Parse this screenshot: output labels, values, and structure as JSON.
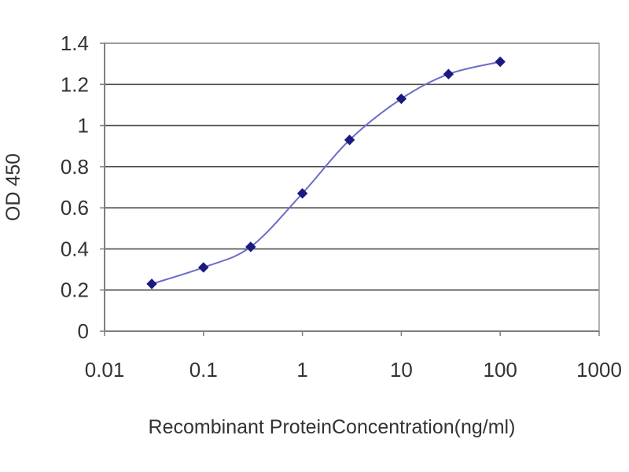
{
  "chart_data": {
    "type": "line",
    "title": "",
    "xlabel": "Recombinant ProteinConcentration(ng/ml)",
    "ylabel": "OD 450",
    "x_scale": "log",
    "xlim": [
      0.01,
      1000
    ],
    "ylim": [
      0,
      1.4
    ],
    "grid": "horizontal",
    "legend": "none",
    "x_ticks": [
      {
        "value": 0.01,
        "label": "0.01"
      },
      {
        "value": 0.1,
        "label": "0.1"
      },
      {
        "value": 1,
        "label": "1"
      },
      {
        "value": 10,
        "label": "10"
      },
      {
        "value": 100,
        "label": "100"
      },
      {
        "value": 1000,
        "label": "1000"
      }
    ],
    "y_ticks": [
      {
        "value": 0,
        "label": "0"
      },
      {
        "value": 0.2,
        "label": "0.2"
      },
      {
        "value": 0.4,
        "label": "0.4"
      },
      {
        "value": 0.6,
        "label": "0.6"
      },
      {
        "value": 0.8,
        "label": "0.8"
      },
      {
        "value": 1.0,
        "label": "1"
      },
      {
        "value": 1.2,
        "label": "1.2"
      },
      {
        "value": 1.4,
        "label": "1.4"
      }
    ],
    "series": [
      {
        "x": [
          0.03,
          0.1,
          0.3,
          1,
          3,
          10,
          30,
          100
        ],
        "y": [
          0.23,
          0.31,
          0.41,
          0.67,
          0.93,
          1.13,
          1.25,
          1.31
        ]
      }
    ],
    "colors": {
      "line": "#6c6cc8",
      "marker": "#1a1a80",
      "grid": "#4d4d4d",
      "axis": "#7f7f7f",
      "plot_border": "#9a9a9a"
    }
  }
}
